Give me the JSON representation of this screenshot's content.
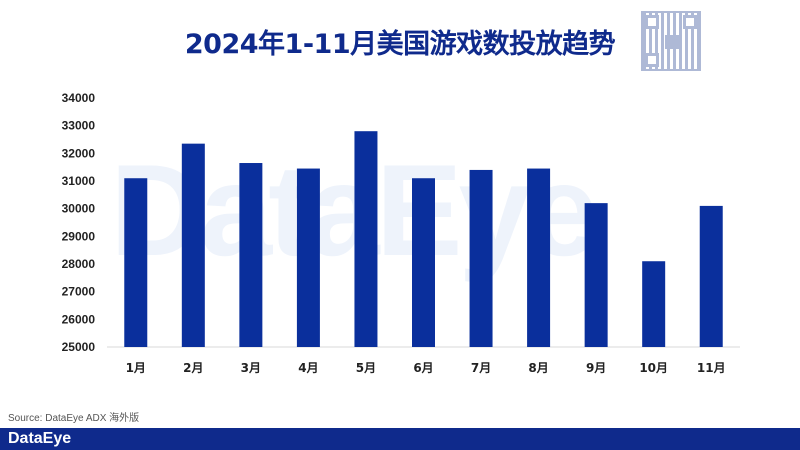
{
  "chart_data": {
    "type": "bar",
    "title": "2024年1-11月美国游戏数投放趋势",
    "categories": [
      "1月",
      "2月",
      "3月",
      "4月",
      "5月",
      "6月",
      "7月",
      "8月",
      "9月",
      "10月",
      "11月"
    ],
    "values": [
      31100,
      32350,
      31650,
      31450,
      32800,
      31100,
      31400,
      31450,
      30200,
      28100,
      30100
    ],
    "ylim": [
      25000,
      34000
    ],
    "yticks": [
      25000,
      26000,
      27000,
      28000,
      29000,
      30000,
      31000,
      32000,
      33000,
      34000
    ],
    "xlabel": "",
    "ylabel": "",
    "grid": false,
    "bar_color": "#0a2f9c"
  },
  "source": "Source: DataEye ADX 海外版",
  "brand": "DataEye",
  "watermark": "DataEye",
  "footer_color": "#0f2a8c"
}
